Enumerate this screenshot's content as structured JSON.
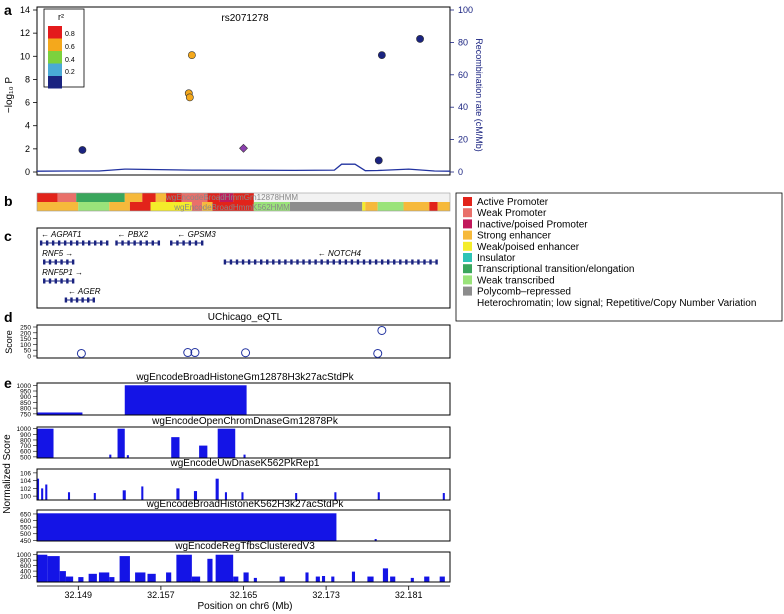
{
  "chart_data": [
    {
      "panel": "a",
      "type": "scatter",
      "title": "rs2071278",
      "ylabel": "−log₁₀ P",
      "y2label": "Recombination rate (cM/Mb)",
      "ylim": [
        0,
        14
      ],
      "yticks": [
        "0",
        "2",
        "4",
        "6",
        "8",
        "10",
        "12",
        "14"
      ],
      "y2lim": [
        0,
        100
      ],
      "y2ticks": [
        "0",
        "20",
        "40",
        "60",
        "80",
        "100"
      ],
      "xlim": [
        32.145,
        32.185
      ],
      "legend": {
        "title": "r²",
        "labels": [
          "0.8",
          "0.6",
          "0.4",
          "0.2"
        ],
        "colors": [
          "#e41a1c",
          "#f4a81c",
          "#7cd13e",
          "#4aaad6",
          "#1a2380"
        ]
      },
      "points": [
        {
          "x": 32.1494,
          "y": 1.9,
          "color": "#1a2380",
          "shape": "circle"
        },
        {
          "x": 32.16,
          "y": 10.1,
          "color": "#f4a81c",
          "shape": "circle"
        },
        {
          "x": 32.1597,
          "y": 6.8,
          "color": "#f4a81c",
          "shape": "circle"
        },
        {
          "x": 32.1598,
          "y": 6.45,
          "color": "#f4a81c",
          "shape": "circle"
        },
        {
          "x": 32.165,
          "y": 2.05,
          "color": "#8b3fae",
          "shape": "diamond"
        },
        {
          "x": 32.1784,
          "y": 10.1,
          "color": "#1a2380",
          "shape": "circle"
        },
        {
          "x": 32.1781,
          "y": 1.0,
          "color": "#1a2380",
          "shape": "circle"
        },
        {
          "x": 32.1821,
          "y": 11.5,
          "color": "#1a2380",
          "shape": "circle"
        }
      ],
      "recombination_line": {
        "color": "#2233a0",
        "x": [
          32.145,
          32.148,
          32.151,
          32.1535,
          32.16,
          32.17,
          32.1738,
          32.1745,
          32.1758,
          32.1768,
          32.178,
          32.181,
          32.1835,
          32.185
        ],
        "y": [
          0.5,
          0.6,
          0.6,
          1.8,
          1.2,
          1.0,
          1.2,
          4.8,
          4.8,
          0.8,
          0.9,
          1.8,
          0.6,
          0.5
        ]
      }
    },
    {
      "panel": "b",
      "type": "heatmap",
      "tracks": [
        "wgEncodeBroadHmmGm12878HMM",
        "wgEncodeBroadHmmK562HMM"
      ],
      "legend": [
        {
          "label": "Active Promoter",
          "color": "#e2231a"
        },
        {
          "label": "Weak Promoter",
          "color": "#e9706a"
        },
        {
          "label": "Inactive/poised Promoter",
          "color": "#c2185b"
        },
        {
          "label": "Strong enhancer",
          "color": "#f6b93b"
        },
        {
          "label": "Weak/poised enhancer",
          "color": "#f4ec2a"
        },
        {
          "label": "Insulator",
          "color": "#2ec4b6"
        },
        {
          "label": "Transcriptional transition/elongation",
          "color": "#3aa65c"
        },
        {
          "label": "Weak transcribed",
          "color": "#9ae37a"
        },
        {
          "label": "Polycomb–repressed",
          "color": "#8c8c8c"
        },
        {
          "label": "Heterochromatin; low signal; Repetitive/Copy Number Variation",
          "color": "#f2f2f2"
        }
      ],
      "row1_segments": [
        {
          "from": 32.145,
          "to": 32.147,
          "color": "#e2231a"
        },
        {
          "from": 32.147,
          "to": 32.1488,
          "color": "#e9706a"
        },
        {
          "from": 32.1488,
          "to": 32.1535,
          "color": "#3aa65c"
        },
        {
          "from": 32.1535,
          "to": 32.1552,
          "color": "#f6b93b"
        },
        {
          "from": 32.1552,
          "to": 32.1565,
          "color": "#e2231a"
        },
        {
          "from": 32.1565,
          "to": 32.1575,
          "color": "#f6b93b"
        },
        {
          "from": 32.1575,
          "to": 32.159,
          "color": "#e2231a"
        },
        {
          "from": 32.159,
          "to": 32.1615,
          "color": "#e9706a"
        },
        {
          "from": 32.1615,
          "to": 32.1627,
          "color": "#e2231a"
        },
        {
          "from": 32.1627,
          "to": 32.164,
          "color": "#c2185b"
        },
        {
          "from": 32.164,
          "to": 32.166,
          "color": "#e2231a"
        }
      ],
      "row2_segments": [
        {
          "from": 32.145,
          "to": 32.149,
          "color": "#f6b93b"
        },
        {
          "from": 32.149,
          "to": 32.152,
          "color": "#9ae37a"
        },
        {
          "from": 32.152,
          "to": 32.154,
          "color": "#f6b93b"
        },
        {
          "from": 32.154,
          "to": 32.156,
          "color": "#e2231a"
        },
        {
          "from": 32.156,
          "to": 32.16,
          "color": "#f4ec2a"
        },
        {
          "from": 32.16,
          "to": 32.161,
          "color": "#e9706a"
        },
        {
          "from": 32.161,
          "to": 32.162,
          "color": "#f6b93b"
        },
        {
          "from": 32.162,
          "to": 32.166,
          "color": "#e2231a"
        },
        {
          "from": 32.166,
          "to": 32.1695,
          "color": "#9ae37a"
        },
        {
          "from": 32.1695,
          "to": 32.1765,
          "color": "#8c8c8c"
        },
        {
          "from": 32.1765,
          "to": 32.1768,
          "color": "#f4ec2a"
        },
        {
          "from": 32.1768,
          "to": 32.178,
          "color": "#f6b93b"
        },
        {
          "from": 32.178,
          "to": 32.1805,
          "color": "#9ae37a"
        },
        {
          "from": 32.1805,
          "to": 32.183,
          "color": "#f6b93b"
        },
        {
          "from": 32.183,
          "to": 32.1838,
          "color": "#e2231a"
        },
        {
          "from": 32.1838,
          "to": 32.185,
          "color": "#f6b93b"
        }
      ]
    },
    {
      "panel": "c",
      "type": "table",
      "genes": [
        {
          "name": "AGPAT1",
          "label": "← AGPAT1",
          "from": 32.1454,
          "to": 32.1518,
          "row": 0,
          "label_x": 32.1454
        },
        {
          "name": "PBX2",
          "label": "← PBX2",
          "from": 32.1527,
          "to": 32.1568,
          "row": 0,
          "label_x": 32.1528
        },
        {
          "name": "GPSM3",
          "label": "← GPSM3",
          "from": 32.158,
          "to": 32.161,
          "row": 0,
          "label_x": 32.1586
        },
        {
          "name": "NOTCH4",
          "label": "← NOTCH4",
          "from": 32.1632,
          "to": 32.1837,
          "row": 1,
          "label_x": 32.1722
        },
        {
          "name": "RNF5",
          "label": "RNF5 →",
          "from": 32.1457,
          "to": 32.1485,
          "row": 2,
          "label_x": 32.1455
        },
        {
          "name": "RNF5P1",
          "label": "RNF5P1 →",
          "from": 32.1457,
          "to": 32.1485,
          "row": 3,
          "label_x": 32.1455
        },
        {
          "name": "AGER",
          "label": "← AGER",
          "from": 32.1478,
          "to": 32.1505,
          "row": 4,
          "label_x": 32.148
        }
      ]
    },
    {
      "panel": "d",
      "type": "scatter",
      "title": "UChicago_eQTL",
      "ylabel": "Score",
      "ylim": [
        0,
        250
      ],
      "yticks": [
        "0",
        "50",
        "100",
        "150",
        "200",
        "250"
      ],
      "points": [
        {
          "x": 32.1493,
          "y": 22
        },
        {
          "x": 32.1596,
          "y": 30
        },
        {
          "x": 32.1603,
          "y": 30
        },
        {
          "x": 32.1652,
          "y": 28
        },
        {
          "x": 32.178,
          "y": 22
        },
        {
          "x": 32.1784,
          "y": 220
        }
      ]
    },
    {
      "panel": "e",
      "type": "bar",
      "ylabel": "Normalized Score",
      "xlabel": "Position on chr6 (Mb)",
      "xlim": [
        32.145,
        32.185
      ],
      "xticks": [
        "32.149",
        "32.157",
        "32.165",
        "32.173",
        "32.181"
      ],
      "xtick_values": [
        32.149,
        32.157,
        32.165,
        32.173,
        32.181
      ],
      "tracks": [
        {
          "title": "wgEncodeBroadHistoneGm12878H3k27acStdPk",
          "ylim": [
            740,
            1020
          ],
          "yticks": [
            "750",
            "800",
            "850",
            "900",
            "950",
            "1000"
          ],
          "bars": [
            {
              "from": 32.145,
              "to": 32.1494,
              "value": 762
            },
            {
              "from": 32.1535,
              "to": 32.1653,
              "value": 1000
            }
          ]
        },
        {
          "title": "wgEncodeOpenChromDnaseGm12878Pk",
          "ylim": [
            480,
            1030
          ],
          "yticks": [
            "500",
            "600",
            "700",
            "800",
            "900",
            "1000"
          ],
          "bars": [
            {
              "from": 32.145,
              "to": 32.1466,
              "value": 1000
            },
            {
              "from": 32.152,
              "to": 32.1522,
              "value": 540
            },
            {
              "from": 32.1528,
              "to": 32.1535,
              "value": 1000
            },
            {
              "from": 32.1537,
              "to": 32.1539,
              "value": 530
            },
            {
              "from": 32.158,
              "to": 32.1588,
              "value": 850
            },
            {
              "from": 32.1607,
              "to": 32.1615,
              "value": 700
            },
            {
              "from": 32.1625,
              "to": 32.1642,
              "value": 1000
            },
            {
              "from": 32.165,
              "to": 32.1652,
              "value": 540
            }
          ]
        },
        {
          "title": "wgEncodeUwDnaseK562PkRep1",
          "ylim": [
            99,
            107
          ],
          "yticks": [
            "100",
            "102",
            "104",
            "106"
          ],
          "bars": [
            {
              "from": 32.145,
              "to": 32.1452,
              "value": 104.5
            },
            {
              "from": 32.1454,
              "to": 32.1456,
              "value": 102
            },
            {
              "from": 32.1458,
              "to": 32.146,
              "value": 103
            },
            {
              "from": 32.148,
              "to": 32.1482,
              "value": 101
            },
            {
              "from": 32.1505,
              "to": 32.1507,
              "value": 100.8
            },
            {
              "from": 32.1533,
              "to": 32.1536,
              "value": 101.5
            },
            {
              "from": 32.1551,
              "to": 32.1553,
              "value": 102.5
            },
            {
              "from": 32.1585,
              "to": 32.1588,
              "value": 102
            },
            {
              "from": 32.1602,
              "to": 32.1605,
              "value": 101.3
            },
            {
              "from": 32.1623,
              "to": 32.1626,
              "value": 104.5
            },
            {
              "from": 32.1632,
              "to": 32.1634,
              "value": 101
            },
            {
              "from": 32.1648,
              "to": 32.165,
              "value": 101
            },
            {
              "from": 32.17,
              "to": 32.1702,
              "value": 100.8
            },
            {
              "from": 32.1738,
              "to": 32.174,
              "value": 101
            },
            {
              "from": 32.178,
              "to": 32.1782,
              "value": 101
            },
            {
              "from": 32.1843,
              "to": 32.1845,
              "value": 100.8
            }
          ]
        },
        {
          "title": "wgEncodeBroadHistoneK562H3k27acStdPk",
          "ylim": [
            445,
            680
          ],
          "yticks": [
            "450",
            "500",
            "550",
            "600",
            "650"
          ],
          "bars": [
            {
              "from": 32.145,
              "to": 32.174,
              "value": 655
            },
            {
              "from": 32.1777,
              "to": 32.1779,
              "value": 460
            }
          ]
        },
        {
          "title": "wgEncodeRegTfbsClusteredV3",
          "ylim": [
            0,
            1100
          ],
          "yticks": [
            "200",
            "400",
            "600",
            "800",
            "1000"
          ],
          "bars": [
            {
              "from": 32.145,
              "to": 32.146,
              "value": 1000
            },
            {
              "from": 32.146,
              "to": 32.1472,
              "value": 950
            },
            {
              "from": 32.1472,
              "to": 32.1478,
              "value": 400
            },
            {
              "from": 32.1478,
              "to": 32.1485,
              "value": 200
            },
            {
              "from": 32.149,
              "to": 32.1495,
              "value": 180
            },
            {
              "from": 32.15,
              "to": 32.1508,
              "value": 300
            },
            {
              "from": 32.151,
              "to": 32.152,
              "value": 350
            },
            {
              "from": 32.152,
              "to": 32.1525,
              "value": 180
            },
            {
              "from": 32.153,
              "to": 32.154,
              "value": 950
            },
            {
              "from": 32.1545,
              "to": 32.1555,
              "value": 350
            },
            {
              "from": 32.1557,
              "to": 32.1565,
              "value": 300
            },
            {
              "from": 32.1575,
              "to": 32.158,
              "value": 350
            },
            {
              "from": 32.1585,
              "to": 32.16,
              "value": 1000
            },
            {
              "from": 32.16,
              "to": 32.1608,
              "value": 200
            },
            {
              "from": 32.1615,
              "to": 32.162,
              "value": 850
            },
            {
              "from": 32.1623,
              "to": 32.164,
              "value": 1000
            },
            {
              "from": 32.164,
              "to": 32.1645,
              "value": 200
            },
            {
              "from": 32.165,
              "to": 32.1655,
              "value": 350
            },
            {
              "from": 32.166,
              "to": 32.1663,
              "value": 150
            },
            {
              "from": 32.1685,
              "to": 32.169,
              "value": 200
            },
            {
              "from": 32.171,
              "to": 32.1713,
              "value": 350
            },
            {
              "from": 32.172,
              "to": 32.1724,
              "value": 200
            },
            {
              "from": 32.1726,
              "to": 32.1729,
              "value": 220
            },
            {
              "from": 32.1735,
              "to": 32.1738,
              "value": 200
            },
            {
              "from": 32.1755,
              "to": 32.1758,
              "value": 380
            },
            {
              "from": 32.177,
              "to": 32.1776,
              "value": 200
            },
            {
              "from": 32.1785,
              "to": 32.179,
              "value": 500
            },
            {
              "from": 32.1792,
              "to": 32.1797,
              "value": 200
            },
            {
              "from": 32.1812,
              "to": 32.1815,
              "value": 150
            },
            {
              "from": 32.1825,
              "to": 32.183,
              "value": 200
            },
            {
              "from": 32.184,
              "to": 32.1845,
              "value": 200
            }
          ]
        }
      ]
    }
  ]
}
